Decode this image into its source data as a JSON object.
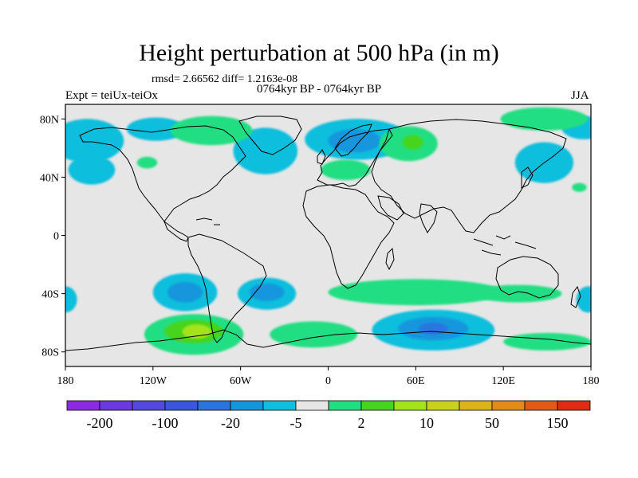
{
  "header": {
    "title": "Height perturbation at 500 hPa (in m)",
    "stats": "rmsd= 2.66562 diff= 1.2163e-08",
    "left_string": "Expt = teiUx-teiOx",
    "center_string": "0764kyr BP - 0764kyr BP",
    "right_string": "JJA"
  },
  "axes": {
    "lat_ticks": [
      {
        "value": 80,
        "label": "80N"
      },
      {
        "value": 40,
        "label": "40N"
      },
      {
        "value": 0,
        "label": "0"
      },
      {
        "value": -40,
        "label": "40S"
      },
      {
        "value": -80,
        "label": "80S"
      }
    ],
    "lon_ticks": [
      {
        "value": -180,
        "label": "180"
      },
      {
        "value": -120,
        "label": "120W"
      },
      {
        "value": -60,
        "label": "60W"
      },
      {
        "value": 0,
        "label": "0"
      },
      {
        "value": 60,
        "label": "60E"
      },
      {
        "value": 120,
        "label": "120E"
      },
      {
        "value": 180,
        "label": "180"
      }
    ],
    "lon_range": [
      -180,
      180
    ],
    "lat_range": [
      -90,
      90
    ]
  },
  "colorbar": {
    "colors": [
      "#8a2be2",
      "#6a3ae0",
      "#5548de",
      "#3b55dc",
      "#2a74e0",
      "#1496dc",
      "#10bedd",
      "#e6e6e6",
      "#20de82",
      "#46d41e",
      "#a4e21a",
      "#c8d21c",
      "#dcb41a",
      "#e48a16",
      "#e25a14",
      "#e02c12"
    ],
    "labels": [
      {
        "boundary": 1,
        "text": "-200"
      },
      {
        "boundary": 3,
        "text": "-100"
      },
      {
        "boundary": 5,
        "text": "-20"
      },
      {
        "boundary": 7,
        "text": "-5"
      },
      {
        "boundary": 9,
        "text": "2"
      },
      {
        "boundary": 11,
        "text": "10"
      },
      {
        "boundary": 13,
        "text": "50"
      },
      {
        "boundary": 15,
        "text": "150"
      }
    ]
  },
  "map_data": {
    "background_color": "#e6e6e6",
    "anomaly_regions": [
      {
        "name": "n-pacific-negative",
        "lon": -165,
        "lat": 65,
        "rlon": 25,
        "rlat": 15,
        "level": 1
      },
      {
        "name": "w-canada-negative",
        "lon": -118,
        "lat": 73,
        "rlon": 20,
        "rlat": 8,
        "level": 1
      },
      {
        "name": "atlantic-negative",
        "lon": -43,
        "lat": 58,
        "rlon": 22,
        "rlat": 16,
        "level": 1
      },
      {
        "name": "barents-negative",
        "lon": 20,
        "lat": 66,
        "rlon": 36,
        "rlat": 14,
        "level": 1
      },
      {
        "name": "barents-negative-core",
        "lon": 18,
        "lat": 65,
        "rlon": 18,
        "rlat": 8,
        "level": 2
      },
      {
        "name": "n-pacific-negative-2",
        "lon": -162,
        "lat": 45,
        "rlon": 16,
        "rlat": 10,
        "level": 1
      },
      {
        "name": "nw-pacific-negative",
        "lon": 148,
        "lat": 50,
        "rlon": 20,
        "rlat": 14,
        "level": 1
      },
      {
        "name": "nw-pacific-negative-2",
        "lon": 175,
        "lat": 74,
        "rlon": 15,
        "rlat": 8,
        "level": 1
      },
      {
        "name": "s-pacific-negative",
        "lon": -98,
        "lat": -39,
        "rlon": 22,
        "rlat": 13,
        "level": 1
      },
      {
        "name": "s-pacific-negative-core",
        "lon": -98,
        "lat": -39,
        "rlon": 12,
        "rlat": 7,
        "level": 2
      },
      {
        "name": "s-atlantic-negative",
        "lon": -42,
        "lat": -40,
        "rlon": 20,
        "rlat": 11,
        "level": 1
      },
      {
        "name": "s-atlantic-negative-core",
        "lon": -42,
        "lat": -39,
        "rlon": 12,
        "rlat": 6,
        "level": 2
      },
      {
        "name": "indian-negative",
        "lon": 72,
        "lat": -65,
        "rlon": 42,
        "rlat": 14,
        "level": 1
      },
      {
        "name": "indian-negative-core",
        "lon": 72,
        "lat": -64,
        "rlon": 24,
        "rlat": 8,
        "level": 2
      },
      {
        "name": "indian-negative-deep",
        "lon": 72,
        "lat": -64,
        "rlon": 10,
        "rlat": 4,
        "level": 3
      },
      {
        "name": "w-pacific-south-negative",
        "lon": -180,
        "lat": -44,
        "rlon": 8,
        "rlat": 9,
        "level": 1
      },
      {
        "name": "e-pacific-south-negative",
        "lon": 178,
        "lat": -44,
        "rlon": 8,
        "rlat": 9,
        "level": 1
      },
      {
        "name": "arctic-positive",
        "lon": -80,
        "lat": 72,
        "rlon": 28,
        "rlat": 10,
        "level": 4
      },
      {
        "name": "europe-positive",
        "lon": 12,
        "lat": 45,
        "rlon": 17,
        "rlat": 7,
        "level": 4
      },
      {
        "name": "siberia-positive",
        "lon": 55,
        "lat": 63,
        "rlon": 20,
        "rlat": 12,
        "level": 4
      },
      {
        "name": "siberia-positive-core",
        "lon": 58,
        "lat": 64,
        "rlon": 7,
        "rlat": 5,
        "level": 5
      },
      {
        "name": "kamchatka-positive",
        "lon": 148,
        "lat": 80,
        "rlon": 30,
        "rlat": 8,
        "level": 4
      },
      {
        "name": "atlantic-positive-small",
        "lon": -124,
        "lat": 50,
        "rlon": 7,
        "rlat": 4,
        "level": 4
      },
      {
        "name": "s-pacific-positive",
        "lon": -92,
        "lat": -68,
        "rlon": 34,
        "rlat": 14,
        "level": 4
      },
      {
        "name": "s-pacific-positive-core",
        "lon": -92,
        "lat": -66,
        "rlon": 20,
        "rlat": 8,
        "level": 5
      },
      {
        "name": "s-pacific-positive-peak",
        "lon": -90,
        "lat": -66,
        "rlon": 10,
        "rlat": 5,
        "level": 6
      },
      {
        "name": "s-indian-positive",
        "lon": 60,
        "lat": -39,
        "rlon": 60,
        "rlat": 9,
        "level": 4
      },
      {
        "name": "s-indian-positive-2",
        "lon": 130,
        "lat": -40,
        "rlon": 30,
        "rlat": 6,
        "level": 4
      },
      {
        "name": "s-atlantic-positive",
        "lon": -10,
        "lat": -68,
        "rlon": 30,
        "rlat": 9,
        "level": 4
      },
      {
        "name": "s-pacific-positive-2",
        "lon": 150,
        "lat": -73,
        "rlon": 30,
        "rlat": 6,
        "level": 4
      },
      {
        "name": "pacific-positive-tiny",
        "lon": 172,
        "lat": 33,
        "rlon": 5,
        "rlat": 3,
        "level": 4
      }
    ]
  }
}
